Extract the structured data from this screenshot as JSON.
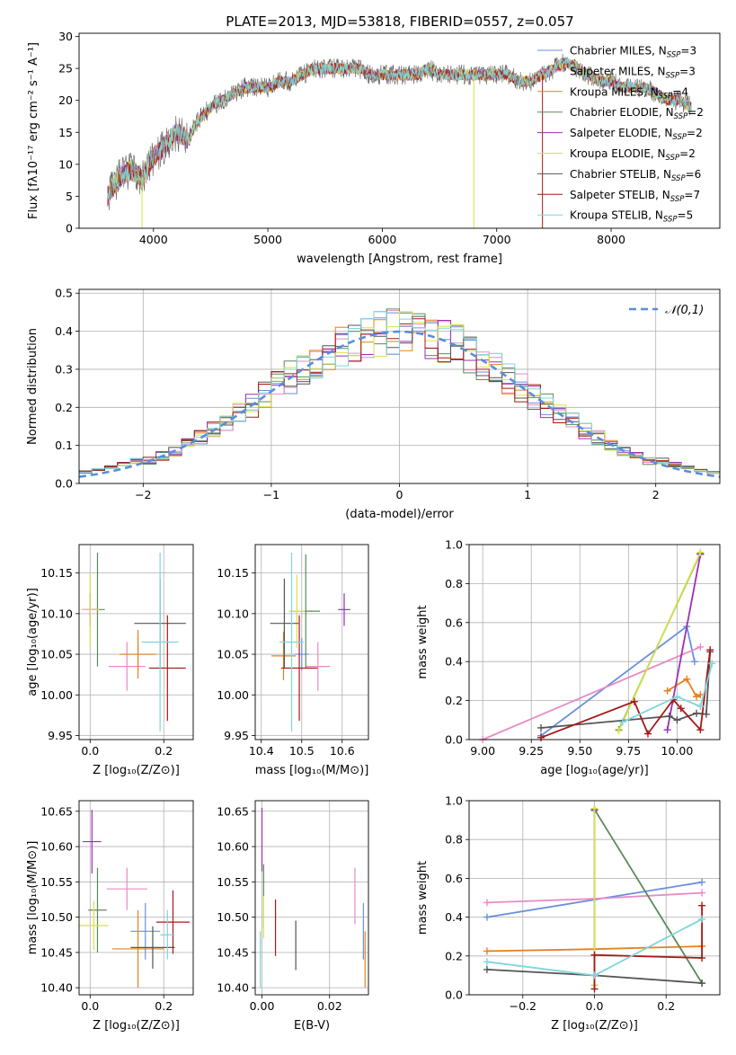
{
  "title": "PLATE=2013, MJD=53818, FIBERID=0557, z=0.057",
  "colors": [
    "#6a8fde",
    "#e88ac6",
    "#e6801f",
    "#5b8a5b",
    "#9c2fb5",
    "#d8e24a",
    "#555555",
    "#a51818",
    "#7fd5db"
  ],
  "legend_main": [
    {
      "name": "Chabrier MILES",
      "nssp": "3"
    },
    {
      "name": "Salpeter MILES",
      "nssp": "3"
    },
    {
      "name": "Kroupa MILES",
      "nssp": "4"
    },
    {
      "name": "Chabrier ELODIE",
      "nssp": "2"
    },
    {
      "name": "Salpeter ELODIE",
      "nssp": "2"
    },
    {
      "name": "Kroupa ELODIE",
      "nssp": "2"
    },
    {
      "name": "Chabrier STELIB",
      "nssp": "6"
    },
    {
      "name": "Salpeter STELIB",
      "nssp": "7"
    },
    {
      "name": "Kroupa STELIB",
      "nssp": "5"
    }
  ],
  "chart_data": [
    {
      "type": "line",
      "id": "spectrum",
      "xlabel": "wavelength [Angstrom, rest frame]",
      "ylabel": "Flux [fλ10⁻¹⁷ erg cm⁻² s⁻¹ A⁻¹]",
      "xlim": [
        3350,
        8950
      ],
      "ylim": [
        0,
        30.5
      ],
      "xticks": [
        4000,
        5000,
        6000,
        7000,
        8000
      ],
      "yticks": [
        0,
        5,
        10,
        15,
        20,
        25,
        30
      ],
      "x": [
        3600,
        3700,
        3800,
        3900,
        4000,
        4100,
        4200,
        4300,
        4400,
        4500,
        4600,
        4700,
        4800,
        4900,
        5000,
        5100,
        5200,
        5300,
        5400,
        5500,
        5600,
        5700,
        5800,
        5900,
        6000,
        6100,
        6200,
        6300,
        6400,
        6500,
        6600,
        6700,
        6800,
        6900,
        7000,
        7100,
        7200,
        7300,
        7400,
        7500,
        7600,
        7700,
        7800,
        7900,
        8000,
        8100,
        8200,
        8300,
        8400,
        8500,
        8600,
        8700
      ],
      "y": [
        5,
        8,
        9,
        8,
        11,
        13,
        15,
        14,
        17,
        19,
        20,
        21,
        22,
        22,
        22,
        23,
        23,
        24,
        25,
        25,
        25,
        25,
        25,
        24,
        24,
        24,
        24,
        24,
        25,
        24,
        24,
        24,
        24,
        24,
        24,
        24,
        23,
        23,
        24,
        25,
        26,
        25,
        24,
        23,
        23,
        22,
        22,
        22,
        21,
        20,
        20,
        19
      ],
      "dips": [
        {
          "x": 3900,
          "y": 0
        },
        {
          "x": 6800,
          "y": 0
        },
        {
          "x": 7400,
          "y": 0
        }
      ]
    },
    {
      "type": "histogram",
      "id": "residuals",
      "xlabel": "(data-model)/error",
      "ylabel": "Normed distribution",
      "xlim": [
        -2.5,
        2.5
      ],
      "ylim": [
        0,
        0.51
      ],
      "xticks": [
        -2,
        -1,
        0,
        1,
        2
      ],
      "yticks": [
        0.0,
        0.1,
        0.2,
        0.3,
        0.4,
        0.5
      ],
      "bin_width": 0.1,
      "bin_start": -2.5,
      "bin_count": 50,
      "reference_curve": {
        "name": "𝒩(0,1)",
        "type": "gaussian",
        "mean": 0,
        "sigma": 1
      }
    },
    {
      "type": "scatter",
      "id": "age_vs_Z",
      "xlabel": "Z [log₁₀(Z/Z⊙)]",
      "ylabel": "age  [log₁₀(age/yr)]",
      "xlim": [
        -0.03,
        0.28
      ],
      "ylim": [
        9.945,
        10.185
      ],
      "xticks": [
        0.0,
        0.2
      ],
      "yticks": [
        9.95,
        10.0,
        10.05,
        10.1,
        10.15
      ],
      "points": [
        {
          "x": 0.13,
          "y": 10.05,
          "xerr": 0.05,
          "yerr": 0.02
        },
        {
          "x": 0.1,
          "y": 10.035,
          "xerr": 0.05,
          "yerr": 0.03
        },
        {
          "x": 0.13,
          "y": 10.05,
          "xerr": 0.05,
          "yerr": 0.03
        },
        {
          "x": 0.02,
          "y": 10.105,
          "xerr": 0.02,
          "yerr": 0.07
        },
        {
          "x": 0.0,
          "y": 10.105,
          "xerr": 0.02,
          "yerr": 0.02
        },
        {
          "x": 0.0,
          "y": 10.105,
          "xerr": 0.025,
          "yerr": 0.045
        },
        {
          "x": 0.19,
          "y": 10.088,
          "xerr": 0.07,
          "yerr": 0.055
        },
        {
          "x": 0.21,
          "y": 10.033,
          "xerr": 0.05,
          "yerr": 0.065
        },
        {
          "x": 0.19,
          "y": 10.065,
          "xerr": 0.05,
          "yerr": 0.11
        }
      ]
    },
    {
      "type": "scatter",
      "id": "age_vs_mass",
      "xlabel": "mass [log₁₀(M/M⊙)]",
      "ylabel": "",
      "xlim": [
        10.385,
        10.665
      ],
      "ylim": [
        9.945,
        10.185
      ],
      "xticks": [
        10.4,
        10.5,
        10.6
      ],
      "yticks": [
        9.95,
        10.0,
        10.05,
        10.1,
        10.15
      ],
      "points": [
        {
          "x": 10.5,
          "y": 10.05,
          "xerr": 0.018,
          "yerr": 0.02
        },
        {
          "x": 10.54,
          "y": 10.035,
          "xerr": 0.03,
          "yerr": 0.03
        },
        {
          "x": 10.455,
          "y": 10.048,
          "xerr": 0.03,
          "yerr": 0.03
        },
        {
          "x": 10.51,
          "y": 10.103,
          "xerr": 0.035,
          "yerr": 0.07
        },
        {
          "x": 10.605,
          "y": 10.105,
          "xerr": 0.015,
          "yerr": 0.02
        },
        {
          "x": 10.488,
          "y": 10.103,
          "xerr": 0.02,
          "yerr": 0.045
        },
        {
          "x": 10.457,
          "y": 10.088,
          "xerr": 0.035,
          "yerr": 0.055
        },
        {
          "x": 10.494,
          "y": 10.033,
          "xerr": 0.045,
          "yerr": 0.065
        },
        {
          "x": 10.475,
          "y": 10.065,
          "xerr": 0.03,
          "yerr": 0.11
        }
      ]
    },
    {
      "type": "line",
      "id": "weight_vs_age",
      "xlabel": "age  [log₁₀(age/yr)]",
      "ylabel": "mass weight",
      "xlim": [
        8.93,
        10.22
      ],
      "ylim": [
        0,
        1.0
      ],
      "xticks": [
        9.0,
        9.25,
        9.5,
        9.75,
        10.0
      ],
      "xtick_labels": [
        "9.00",
        "9.25",
        "9.50",
        "9.75",
        "10.00"
      ],
      "yticks": [
        0.0,
        0.2,
        0.4,
        0.6,
        0.8,
        1.0
      ],
      "series": [
        {
          "x": [
            9.3,
            10.05,
            10.09
          ],
          "y": [
            0.02,
            0.58,
            0.4
          ]
        },
        {
          "x": [
            9.0,
            10.12
          ],
          "y": [
            0.0,
            0.475
          ]
        },
        {
          "x": [
            9.95,
            10.05,
            10.1,
            10.12
          ],
          "y": [
            0.25,
            0.31,
            0.22,
            0.23
          ]
        },
        {
          "x": [
            9.7,
            10.12
          ],
          "y": [
            0.05,
            0.955
          ]
        },
        {
          "x": [
            9.95,
            10.12
          ],
          "y": [
            0.05,
            0.95
          ]
        },
        {
          "x": [
            9.7,
            10.12
          ],
          "y": [
            0.045,
            0.96
          ]
        },
        {
          "x": [
            9.3,
            9.96,
            10.0,
            10.1,
            10.15,
            10.17
          ],
          "y": [
            0.06,
            0.12,
            0.1,
            0.135,
            0.13,
            0.45
          ]
        },
        {
          "x": [
            9.3,
            9.78,
            9.85,
            9.98,
            10.02,
            10.12,
            10.17
          ],
          "y": [
            0.01,
            0.195,
            0.03,
            0.205,
            0.16,
            0.05,
            0.46
          ]
        },
        {
          "x": [
            9.72,
            10.0,
            10.12,
            10.18
          ],
          "y": [
            0.09,
            0.22,
            0.17,
            0.39
          ]
        }
      ]
    },
    {
      "type": "scatter",
      "id": "mass_vs_Z",
      "xlabel": "Z [log₁₀(Z/Z⊙)]",
      "ylabel": "mass [log₁₀(M/M⊙)]",
      "xlim": [
        -0.03,
        0.28
      ],
      "ylim": [
        10.39,
        10.665
      ],
      "xticks": [
        0.0,
        0.2
      ],
      "yticks": [
        10.4,
        10.45,
        10.5,
        10.55,
        10.6,
        10.65
      ],
      "points": [
        {
          "x": 0.15,
          "y": 10.48,
          "xerr": 0.04,
          "yerr": 0.04
        },
        {
          "x": 0.1,
          "y": 10.54,
          "xerr": 0.055,
          "yerr": 0.03
        },
        {
          "x": 0.13,
          "y": 10.455,
          "xerr": 0.07,
          "yerr": 0.055
        },
        {
          "x": 0.02,
          "y": 10.51,
          "xerr": 0.025,
          "yerr": 0.06
        },
        {
          "x": 0.005,
          "y": 10.607,
          "xerr": 0.025,
          "yerr": 0.045
        },
        {
          "x": 0.01,
          "y": 10.488,
          "xerr": 0.04,
          "yerr": 0.035
        },
        {
          "x": 0.17,
          "y": 10.457,
          "xerr": 0.06,
          "yerr": 0.03
        },
        {
          "x": 0.225,
          "y": 10.493,
          "xerr": 0.045,
          "yerr": 0.045
        },
        {
          "x": 0.21,
          "y": 10.475,
          "xerr": 0.02,
          "yerr": 0.035
        }
      ]
    },
    {
      "type": "scatter",
      "id": "mass_vs_EBV",
      "xlabel": "E(B-V)",
      "ylabel": "",
      "xlim": [
        -0.002,
        0.0315
      ],
      "ylim": [
        10.39,
        10.665
      ],
      "xticks": [
        0.0,
        0.02
      ],
      "xtick_labels": [
        "0.00",
        "0.02"
      ],
      "yticks": [
        10.4,
        10.45,
        10.5,
        10.55,
        10.6,
        10.65
      ],
      "points": [
        {
          "x": 0.03,
          "y": 10.48,
          "xerr": 0,
          "yerr": 0.04
        },
        {
          "x": 0.0275,
          "y": 10.53,
          "xerr": 0,
          "yerr": 0.04
        },
        {
          "x": 0.0305,
          "y": 10.44,
          "xerr": 0,
          "yerr": 0.04
        },
        {
          "x": 0.0005,
          "y": 10.53,
          "xerr": 0,
          "yerr": 0.045
        },
        {
          "x": 0.0,
          "y": 10.61,
          "xerr": 0,
          "yerr": 0.045
        },
        {
          "x": 0.0005,
          "y": 10.5,
          "xerr": 0,
          "yerr": 0.03
        },
        {
          "x": 0.01,
          "y": 10.46,
          "xerr": 0,
          "yerr": 0.035
        },
        {
          "x": 0.004,
          "y": 10.485,
          "xerr": 0,
          "yerr": 0.04
        },
        {
          "x": -0.0005,
          "y": 10.44,
          "xerr": 0,
          "yerr": 0.04
        }
      ]
    },
    {
      "type": "line",
      "id": "weight_vs_Z",
      "xlabel": "Z [log₁₀(Z/Z⊙)]",
      "ylabel": "mass weight",
      "xlim": [
        -0.35,
        0.35
      ],
      "ylim": [
        0,
        1.0
      ],
      "xticks": [
        -0.2,
        0.0,
        0.2
      ],
      "xtick_labels": [
        "−0.2",
        "0.0",
        "0.2"
      ],
      "yticks": [
        0.0,
        0.2,
        0.4,
        0.6,
        0.8,
        1.0
      ],
      "series": [
        {
          "x": [
            -0.3,
            0.3
          ],
          "y": [
            0.4,
            0.58
          ]
        },
        {
          "x": [
            -0.3,
            0.0,
            0.3
          ],
          "y": [
            0.475,
            0.495,
            0.525
          ]
        },
        {
          "x": [
            -0.3,
            0.0,
            0.3
          ],
          "y": [
            0.225,
            0.235,
            0.25
          ]
        },
        {
          "x": [
            0.0,
            0.3
          ],
          "y": [
            0.955,
            0.06
          ]
        },
        {
          "x": [
            0.0,
            0.0
          ],
          "y": [
            0.05,
            0.95
          ]
        },
        {
          "x": [
            0.0,
            0.0
          ],
          "y": [
            0.05,
            0.96
          ]
        },
        {
          "x": [
            -0.3,
            0.0,
            0.3
          ],
          "y": [
            0.13,
            0.1,
            0.06
          ]
        },
        {
          "x": [
            0.0,
            0.0,
            0.3,
            0.3
          ],
          "y": [
            0.03,
            0.205,
            0.19,
            0.46
          ]
        },
        {
          "x": [
            -0.3,
            0.0,
            0.3
          ],
          "y": [
            0.17,
            0.1,
            0.39
          ]
        }
      ]
    }
  ]
}
